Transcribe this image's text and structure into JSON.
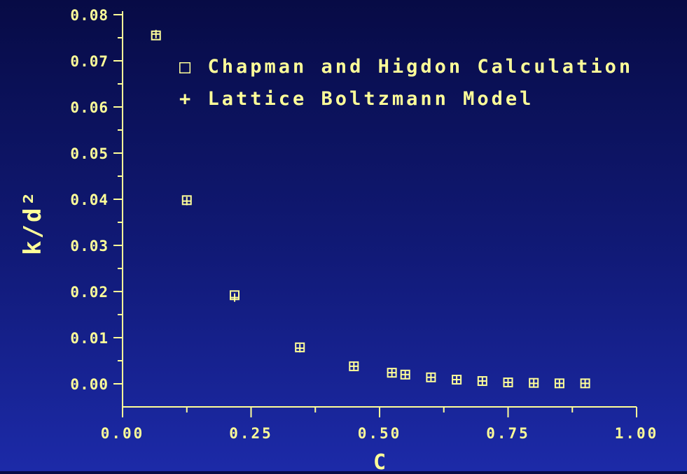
{
  "colors": {
    "foreground": "#ffff99",
    "background_top": "#070b45",
    "background_bottom": "#1c2aa8"
  },
  "chart_data": {
    "type": "scatter",
    "title": "",
    "xlabel": "C",
    "ylabel": "k/d²",
    "xlim": [
      0.0,
      1.0
    ],
    "ylim": [
      0.0,
      0.08
    ],
    "x_ticks": [
      "0.00",
      "0.25",
      "0.50",
      "0.75",
      "1.00"
    ],
    "y_ticks": [
      "0.00",
      "0.01",
      "0.02",
      "0.03",
      "0.04",
      "0.05",
      "0.06",
      "0.07",
      "0.08"
    ],
    "grid": false,
    "legend_position": "top-right",
    "series": [
      {
        "name": "Chapman and Higdon Calculation",
        "marker": "square",
        "legend_label": "□ Chapman and Higdon Calculation",
        "x": [
          0.065,
          0.125,
          0.218,
          0.345,
          0.45,
          0.524,
          0.55,
          0.6,
          0.65,
          0.7,
          0.75,
          0.8,
          0.85,
          0.9
        ],
        "y": [
          0.0755,
          0.0398,
          0.0192,
          0.0079,
          0.0038,
          0.0024,
          0.002,
          0.0014,
          0.0009,
          0.0006,
          0.0003,
          0.0002,
          0.0001,
          0.0001
        ]
      },
      {
        "name": "Lattice Boltzmann Model",
        "marker": "plus",
        "legend_label": "+ Lattice Boltzmann Model",
        "x": [
          0.065,
          0.125,
          0.218,
          0.345,
          0.45,
          0.524,
          0.55,
          0.6,
          0.65,
          0.7,
          0.75,
          0.8,
          0.85,
          0.9
        ],
        "y": [
          0.0758,
          0.0396,
          0.0187,
          0.0077,
          0.0038,
          0.0024,
          0.002,
          0.0014,
          0.0009,
          0.0006,
          0.0003,
          0.0001,
          0.0001,
          0.0001
        ]
      }
    ]
  }
}
